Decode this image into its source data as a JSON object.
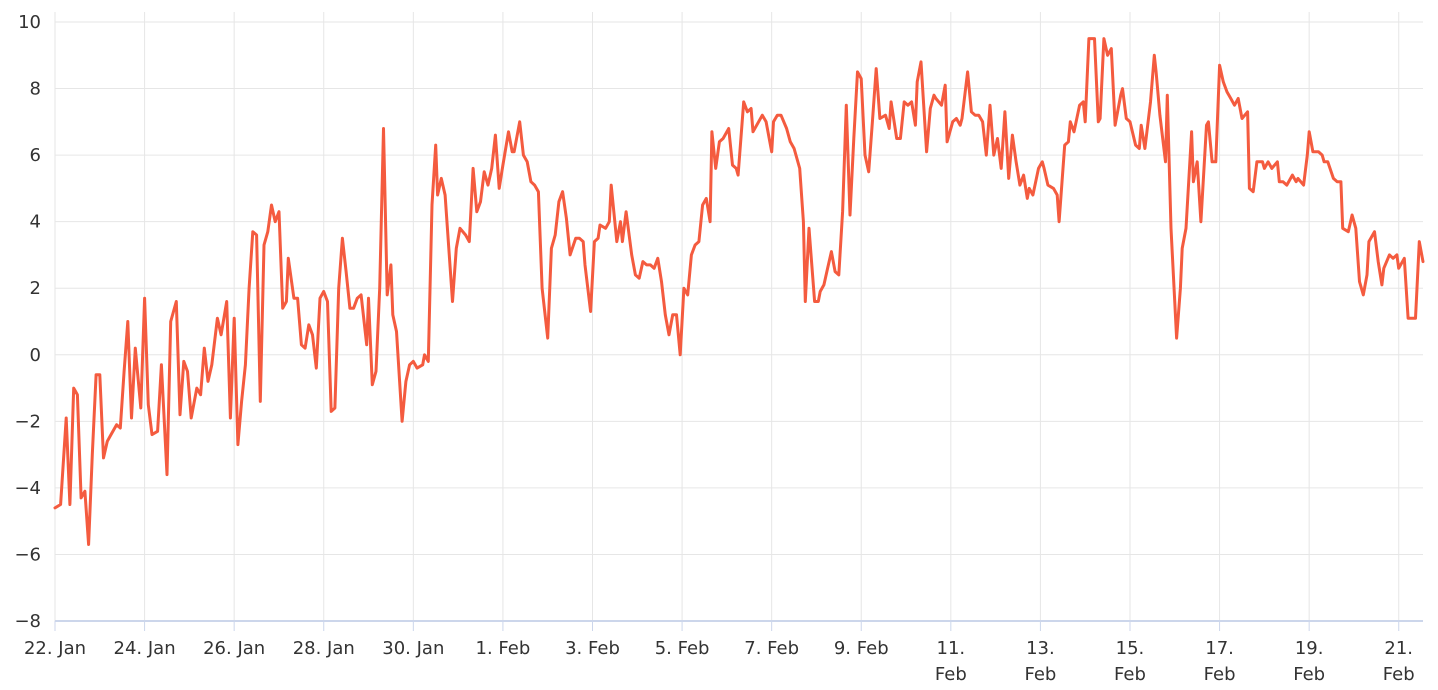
{
  "chart_data": {
    "type": "line",
    "x": [
      0,
      3,
      6,
      8,
      10,
      12,
      14,
      16,
      18,
      20,
      22,
      24,
      26,
      28,
      30,
      33,
      35,
      37,
      39,
      41,
      43,
      46,
      48,
      50,
      52,
      55,
      57,
      60,
      62,
      65,
      67,
      69,
      71,
      73,
      76,
      78,
      80,
      82,
      84,
      87,
      89,
      92,
      94,
      96,
      98,
      100,
      102,
      104,
      106,
      108,
      110,
      112,
      114,
      116,
      118,
      120,
      122,
      124,
      125,
      128,
      130,
      132,
      134,
      136,
      138,
      140,
      142,
      144,
      146,
      148,
      150,
      152,
      154,
      156,
      158,
      160,
      162,
      164,
      167,
      168,
      170,
      172,
      174,
      176,
      178,
      180,
      181,
      183,
      186,
      188,
      190,
      192,
      194,
      197,
      198,
      200,
      202,
      204,
      205,
      207,
      209,
      211,
      213,
      215,
      217,
      220,
      222,
      224,
      226,
      228,
      230,
      232,
      234,
      236,
      238,
      240,
      243,
      245,
      246,
      249,
      251,
      253,
      255,
      257,
      259,
      261,
      264,
      266,
      268,
      270,
      272,
      274,
      276,
      279,
      281,
      283,
      284,
      287,
      289,
      291,
      292,
      295,
      297,
      298,
      301,
      303,
      304,
      306,
      309,
      311,
      313,
      315,
      317,
      319,
      321,
      323,
      325,
      327,
      329,
      331,
      333,
      335,
      337,
      339,
      341,
      343,
      345,
      347,
      349,
      351,
      352,
      354,
      356,
      358,
      361,
      363,
      365,
      366,
      369,
      371,
      373,
      374,
      377,
      379,
      381,
      384,
      385,
      387,
      389,
      392,
      394,
      396,
      399,
      401,
      402,
      404,
      407,
      409,
      410,
      412,
      414,
      416,
      418,
      420,
      422,
      424,
      426,
      428,
      430,
      432,
      434,
      436,
      438,
      440,
      442,
      445,
      447,
      448,
      451,
      453,
      455,
      457,
      459,
      461,
      462,
      464,
      467,
      469,
      471,
      472,
      475,
      477,
      478,
      481,
      483,
      485,
      486,
      489,
      491,
      493,
      495,
      497,
      499,
      501,
      503,
      505,
      507,
      509,
      511,
      513,
      515,
      517,
      519,
      521,
      522,
      524,
      527,
      529,
      530,
      532,
      535,
      537,
      538,
      541,
      543,
      544,
      546,
      549,
      551,
      552,
      554,
      557,
      559,
      560,
      562,
      564,
      566,
      568,
      571,
      572,
      574,
      576,
      579,
      581,
      582,
      584,
      587,
      589,
      590,
      592,
      595,
      596,
      598,
      601,
      603,
      604,
      606,
      609,
      610,
      612,
      614,
      617,
      618,
      620,
      622,
      624,
      626,
      628,
      630,
      632,
      634,
      636,
      639,
      640,
      642,
      644,
      647,
      648,
      650,
      652,
      655,
      656,
      658,
      660,
      663,
      665,
      666,
      669,
      671,
      672,
      674,
      677,
      679,
      680,
      682,
      685,
      687,
      689,
      690,
      693,
      695,
      697,
      699,
      701,
      703,
      704,
      707,
      709,
      711,
      712,
      715,
      717,
      719,
      720,
      723,
      725,
      727,
      729,
      731,
      733
    ],
    "series": [
      {
        "color": "#f45b3f",
        "values": [
          -4.6,
          -4.5,
          -1.9,
          -4.5,
          -1.0,
          -1.2,
          -4.3,
          -4.1,
          -5.7,
          -3.0,
          -0.6,
          -0.6,
          -3.1,
          -2.6,
          -2.4,
          -2.1,
          -2.2,
          -0.5,
          1.0,
          -1.9,
          0.2,
          -1.6,
          1.7,
          -1.5,
          -2.4,
          -2.3,
          -0.3,
          -3.6,
          1.0,
          1.6,
          -1.8,
          -0.2,
          -0.5,
          -1.9,
          -1.0,
          -1.2,
          0.2,
          -0.8,
          -0.3,
          1.1,
          0.6,
          1.6,
          -1.9,
          1.1,
          -2.7,
          -1.4,
          -0.3,
          2.0,
          3.7,
          3.6,
          -1.4,
          3.3,
          3.7,
          4.5,
          4.0,
          4.3,
          1.4,
          1.6,
          2.9,
          1.7,
          1.7,
          0.3,
          0.2,
          0.9,
          0.6,
          -0.4,
          1.7,
          1.9,
          1.6,
          -1.7,
          -1.6,
          2.0,
          3.5,
          2.5,
          1.4,
          1.4,
          1.7,
          1.8,
          0.3,
          1.7,
          -0.9,
          -0.5,
          2.0,
          6.8,
          1.8,
          2.7,
          1.2,
          0.7,
          -2.0,
          -0.8,
          -0.3,
          -0.2,
          -0.4,
          -0.3,
          0.0,
          -0.2,
          4.5,
          6.3,
          4.8,
          5.3,
          4.8,
          3.2,
          1.6,
          3.2,
          3.8,
          3.6,
          3.4,
          5.6,
          4.3,
          4.6,
          5.5,
          5.1,
          5.6,
          6.6,
          5.0,
          5.7,
          6.7,
          6.1,
          6.1,
          7.0,
          6.0,
          5.8,
          5.2,
          5.1,
          4.9,
          2.0,
          0.5,
          3.2,
          3.6,
          4.6,
          4.9,
          4.1,
          3.0,
          3.5,
          3.5,
          3.4,
          2.7,
          1.3,
          3.4,
          3.5,
          3.9,
          3.8,
          4.0,
          5.1,
          3.4,
          4.0,
          3.4,
          4.3,
          3.0,
          2.4,
          2.3,
          2.8,
          2.7,
          2.7,
          2.6,
          2.9,
          2.2,
          1.2,
          0.6,
          1.2,
          1.2,
          0.0,
          2.0,
          1.8,
          3.0,
          3.3,
          3.4,
          4.5,
          4.7,
          4.0,
          6.7,
          5.6,
          6.4,
          6.5,
          6.8,
          5.7,
          5.6,
          5.4,
          7.6,
          7.3,
          7.4,
          6.7,
          7.0,
          7.2,
          7.0,
          6.1,
          7.0,
          7.2,
          7.2,
          6.8,
          6.4,
          6.2,
          5.6,
          4.0,
          1.6,
          3.8,
          1.6,
          1.6,
          1.9,
          2.1,
          2.6,
          3.1,
          2.5,
          2.4,
          4.3,
          7.5,
          4.2,
          6.5,
          8.5,
          8.3,
          6.0,
          5.5,
          7.0,
          8.6,
          7.1,
          7.2,
          6.8,
          7.6,
          6.5,
          6.5,
          7.6,
          7.5,
          7.6,
          6.9,
          8.2,
          8.8,
          6.1,
          7.4,
          7.8,
          7.7,
          7.5,
          8.1,
          6.4,
          7.0,
          7.1,
          6.9,
          7.1,
          8.5,
          7.3,
          7.2,
          7.2,
          7.0,
          6.0,
          7.5,
          6.0,
          6.5,
          5.6,
          7.3,
          5.3,
          6.6,
          5.8,
          5.1,
          5.4,
          4.7,
          5.0,
          4.8,
          5.6,
          5.8,
          5.6,
          5.1,
          5.0,
          4.8,
          4.0,
          6.3,
          6.4,
          7.0,
          6.7,
          7.5,
          7.6,
          7.0,
          9.5,
          9.5,
          7.0,
          7.1,
          9.5,
          9.0,
          9.2,
          6.9,
          7.8,
          8.0,
          7.1,
          7.0,
          6.3,
          6.2,
          6.9,
          6.2,
          7.6,
          9.0,
          8.5,
          7.2,
          5.8,
          7.8,
          3.8,
          0.5,
          2.0,
          3.2,
          3.8,
          6.7,
          5.2,
          5.8,
          4.0,
          6.9,
          7.0,
          5.8,
          5.8,
          8.7,
          8.2,
          7.9,
          7.7,
          7.5,
          7.7,
          7.1,
          7.3,
          5.0,
          4.9,
          5.8,
          5.8,
          5.6,
          5.8,
          5.6,
          5.8,
          5.2,
          5.2,
          5.1,
          5.4,
          5.2,
          5.3,
          5.1,
          6.0,
          6.7,
          6.1,
          6.1,
          6.0,
          5.8,
          5.8,
          5.3,
          5.2,
          5.2,
          3.8,
          3.7,
          4.2,
          3.8,
          2.2,
          1.8,
          2.4,
          3.4,
          3.7,
          2.8,
          2.1,
          2.6,
          3.0,
          2.9,
          3.0,
          2.6,
          2.9,
          1.1,
          1.1,
          1.1,
          3.4,
          2.8
        ]
      }
    ],
    "xlim": [
      0,
      733
    ],
    "xticks": [
      {
        "value": 0,
        "label": "22. Jan"
      },
      {
        "value": 48,
        "label": "24. Jan"
      },
      {
        "value": 96,
        "label": "26. Jan"
      },
      {
        "value": 144,
        "label": "28. Jan"
      },
      {
        "value": 192,
        "label": "30. Jan"
      },
      {
        "value": 240,
        "label": "1. Feb"
      },
      {
        "value": 288,
        "label": "3. Feb"
      },
      {
        "value": 336,
        "label": "5. Feb"
      },
      {
        "value": 384,
        "label": "7. Feb"
      },
      {
        "value": 432,
        "label": "9. Feb"
      },
      {
        "value": 480,
        "label": "11. Feb"
      },
      {
        "value": 528,
        "label": "13. Feb"
      },
      {
        "value": 576,
        "label": "15. Feb"
      },
      {
        "value": 624,
        "label": "17. Feb"
      },
      {
        "value": 672,
        "label": "19. Feb"
      },
      {
        "value": 720,
        "label": "21. Feb"
      }
    ],
    "ylim": [
      -8,
      10
    ],
    "yticks": [
      {
        "value": -8,
        "label": "−8"
      },
      {
        "value": -6,
        "label": "−6"
      },
      {
        "value": -4,
        "label": "−4"
      },
      {
        "value": -2,
        "label": "−2"
      },
      0,
      2,
      4,
      6,
      8,
      10
    ],
    "grid": true
  }
}
